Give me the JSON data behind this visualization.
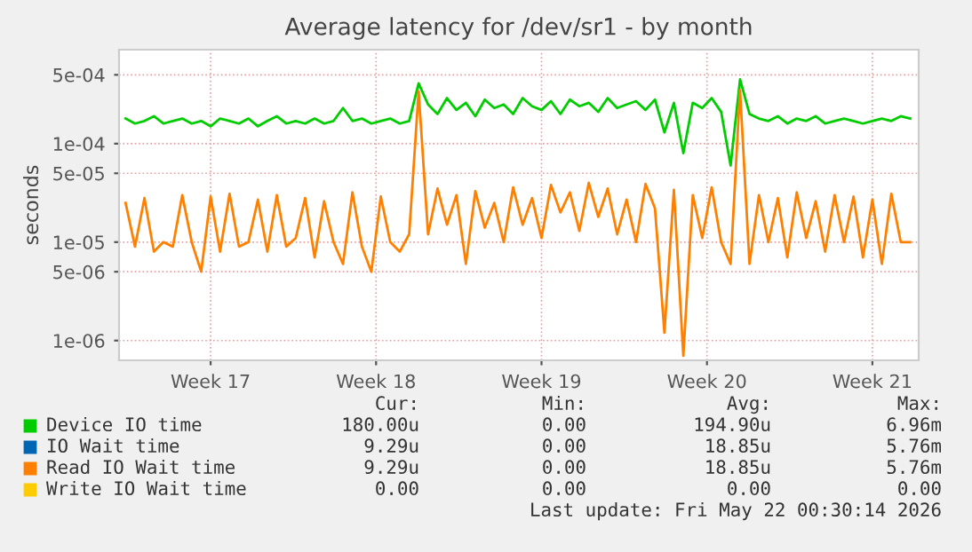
{
  "chart_data": {
    "type": "line",
    "title": "Average latency for /dev/sr1 - by month",
    "ylabel": "seconds",
    "x": [
      "2026-04-19T21:36",
      "2026-04-20T07:12",
      "2026-04-20T16:48",
      "2026-04-21T02:24",
      "2026-04-21T12:00",
      "2026-04-21T21:36",
      "2026-04-22T07:12",
      "2026-04-22T16:48",
      "2026-04-23T02:24",
      "2026-04-23T12:00",
      "2026-04-23T21:36",
      "2026-04-24T07:12",
      "2026-04-24T16:48",
      "2026-04-25T02:24",
      "2026-04-25T12:00",
      "2026-04-25T21:36",
      "2026-04-26T07:12",
      "2026-04-26T16:48",
      "2026-04-27T02:24",
      "2026-04-27T12:00",
      "2026-04-27T21:36",
      "2026-04-28T07:12",
      "2026-04-28T16:48",
      "2026-04-29T02:24",
      "2026-04-29T12:00",
      "2026-04-29T21:36",
      "2026-04-30T07:12",
      "2026-04-30T16:48",
      "2026-05-01T02:24",
      "2026-05-01T12:00",
      "2026-05-01T21:36",
      "2026-05-02T07:12",
      "2026-05-02T16:48",
      "2026-05-03T02:24",
      "2026-05-03T12:00",
      "2026-05-03T21:36",
      "2026-05-04T07:12",
      "2026-05-04T16:48",
      "2026-05-05T02:24",
      "2026-05-05T12:00",
      "2026-05-05T21:36",
      "2026-05-06T07:12",
      "2026-05-06T16:48",
      "2026-05-07T02:24",
      "2026-05-07T12:00",
      "2026-05-07T21:36",
      "2026-05-08T07:12",
      "2026-05-08T16:48",
      "2026-05-09T02:24",
      "2026-05-09T12:00",
      "2026-05-09T21:36",
      "2026-05-10T07:12",
      "2026-05-10T16:48",
      "2026-05-11T02:24",
      "2026-05-11T12:00",
      "2026-05-11T21:36",
      "2026-05-12T07:12",
      "2026-05-12T16:48",
      "2026-05-13T02:24",
      "2026-05-13T12:00",
      "2026-05-13T21:36",
      "2026-05-14T07:12",
      "2026-05-14T16:48",
      "2026-05-15T02:24",
      "2026-05-15T12:00",
      "2026-05-15T21:36",
      "2026-05-16T07:12",
      "2026-05-16T16:48",
      "2026-05-17T02:24",
      "2026-05-17T12:00",
      "2026-05-17T21:36",
      "2026-05-18T07:12",
      "2026-05-18T16:48",
      "2026-05-19T02:24",
      "2026-05-19T12:00",
      "2026-05-19T21:36",
      "2026-05-20T07:12",
      "2026-05-20T16:48",
      "2026-05-21T02:24",
      "2026-05-21T12:00",
      "2026-05-21T21:36",
      "2026-05-22T07:12",
      "2026-05-22T16:48",
      "2026-05-23T02:24"
    ],
    "series": [
      {
        "name": "Device IO time",
        "color": "#00cc00",
        "values": [
          0.00018,
          0.00016,
          0.00017,
          0.00019,
          0.00016,
          0.00017,
          0.00018,
          0.00016,
          0.00017,
          0.00015,
          0.00018,
          0.00017,
          0.00016,
          0.00018,
          0.00015,
          0.00017,
          0.00019,
          0.00016,
          0.00017,
          0.00016,
          0.00018,
          0.00016,
          0.00017,
          0.00023,
          0.00017,
          0.00018,
          0.00016,
          0.00017,
          0.00018,
          0.00016,
          0.00017,
          0.00041,
          0.00025,
          0.0002,
          0.00029,
          0.00022,
          0.00026,
          0.00019,
          0.00028,
          0.00023,
          0.00025,
          0.0002,
          0.00029,
          0.00024,
          0.00022,
          0.00027,
          0.0002,
          0.00028,
          0.00024,
          0.00026,
          0.00021,
          0.00029,
          0.00023,
          0.00025,
          0.00027,
          0.00022,
          0.00028,
          0.00013,
          0.00026,
          8e-05,
          0.00026,
          0.00023,
          0.00029,
          0.00021,
          6e-05,
          0.00045,
          0.0002,
          0.00018,
          0.00017,
          0.00019,
          0.00016,
          0.00018,
          0.00017,
          0.00019,
          0.00016,
          0.00017,
          0.00018,
          0.00017,
          0.00016,
          0.00017,
          0.00018,
          0.00017,
          0.00019,
          0.00018
        ]
      },
      {
        "name": "IO Wait time",
        "color": "#0066b3",
        "values": [
          null,
          null,
          null,
          null,
          null,
          null,
          null,
          null,
          null,
          null,
          null,
          null,
          null,
          null,
          null,
          null,
          null,
          null,
          null,
          null,
          null,
          null,
          null,
          null,
          null,
          null,
          null,
          null,
          null,
          null,
          null,
          null,
          null,
          null,
          null,
          null,
          null,
          null,
          null,
          null,
          null,
          null,
          null,
          null,
          null,
          null,
          null,
          null,
          null,
          null,
          null,
          null,
          null,
          null,
          null,
          null,
          null,
          null,
          null,
          null,
          null,
          null,
          null,
          null,
          null,
          null,
          null,
          null,
          null,
          null,
          null,
          null,
          null,
          null,
          null,
          null,
          null,
          null,
          null,
          null,
          null,
          null,
          null,
          null
        ]
      },
      {
        "name": "Read IO Wait time",
        "color": "#ff8000",
        "values": [
          2.5e-05,
          9e-06,
          2.8e-05,
          8e-06,
          1e-05,
          9e-06,
          3e-05,
          1e-05,
          5e-06,
          2.9e-05,
          8e-06,
          3.1e-05,
          9e-06,
          1e-05,
          2.7e-05,
          8e-06,
          3e-05,
          9e-06,
          1.1e-05,
          2.8e-05,
          7e-06,
          2.6e-05,
          1e-05,
          6e-06,
          3.2e-05,
          9e-06,
          5e-06,
          2.9e-05,
          1e-05,
          8e-06,
          1.2e-05,
          0.00034,
          1.2e-05,
          3.5e-05,
          1.5e-05,
          3e-05,
          6e-06,
          3.3e-05,
          1.4e-05,
          2.5e-05,
          1e-05,
          3.6e-05,
          1.5e-05,
          2.8e-05,
          1.1e-05,
          3.8e-05,
          2e-05,
          3.2e-05,
          1.3e-05,
          4e-05,
          1.8e-05,
          3.5e-05,
          1.2e-05,
          2.7e-05,
          1e-05,
          3.9e-05,
          2.2e-05,
          1.2e-06,
          3.4e-05,
          7e-07,
          3e-05,
          1.1e-05,
          3.6e-05,
          1e-05,
          6e-06,
          0.00035,
          6e-06,
          3e-05,
          1e-05,
          2.8e-05,
          7e-06,
          3.2e-05,
          1.1e-05,
          2.6e-05,
          8e-06,
          3e-05,
          1e-05,
          2.9e-05,
          7e-06,
          2.7e-05,
          6e-06,
          3.1e-05,
          1e-05,
          1e-05
        ]
      },
      {
        "name": "Write IO Wait time",
        "color": "#ffcc00",
        "values": [
          null,
          null,
          null,
          null,
          null,
          null,
          null,
          null,
          null,
          null,
          null,
          null,
          null,
          null,
          null,
          null,
          null,
          null,
          null,
          null,
          null,
          null,
          null,
          null,
          null,
          null,
          null,
          null,
          null,
          null,
          null,
          null,
          null,
          null,
          null,
          null,
          null,
          null,
          null,
          null,
          null,
          null,
          null,
          null,
          null,
          null,
          null,
          null,
          null,
          null,
          null,
          null,
          null,
          null,
          null,
          null,
          null,
          null,
          null,
          null,
          null,
          null,
          null,
          null,
          null,
          null,
          null,
          null,
          null,
          null,
          null,
          null,
          null,
          null,
          null,
          null,
          null,
          null,
          null,
          null,
          null,
          null,
          null,
          null
        ]
      }
    ],
    "log": "y",
    "ylim": [
      6.3e-07,
      0.0009
    ],
    "yticks": [
      {
        "value": 1e-06,
        "label": "1e-06"
      },
      {
        "value": 5e-06,
        "label": "5e-06"
      },
      {
        "value": 1e-05,
        "label": "1e-05"
      },
      {
        "value": 5e-05,
        "label": "5e-05"
      },
      {
        "value": 0.0001,
        "label": "1e-04"
      },
      {
        "value": 0.0005,
        "label": "5e-04"
      }
    ],
    "xlim": [
      "2026-04-19T15:00",
      "2026-05-23T11:00"
    ],
    "xticks": [
      {
        "value": "2026-04-23T12:00",
        "label": "Week 17"
      },
      {
        "value": "2026-04-30T12:00",
        "label": "Week 18"
      },
      {
        "value": "2026-05-07T12:00",
        "label": "Week 19"
      },
      {
        "value": "2026-05-14T12:00",
        "label": "Week 20"
      },
      {
        "value": "2026-05-21T12:00",
        "label": "Week 21"
      }
    ],
    "grid": true,
    "legend": "bottom",
    "annotations": [
      "Cur:",
      "Min:",
      "Avg:",
      "Max:",
      "180.00u",
      "0.00",
      "194.90u",
      "6.96m",
      "9.29u",
      "0.00",
      "18.85u",
      "5.76m",
      "9.29u",
      "0.00",
      "18.85u",
      "5.76m",
      "0.00",
      "0.00",
      "0.00",
      "0.00",
      "Last update: Fri May 22 00:30:14 2026"
    ]
  }
}
